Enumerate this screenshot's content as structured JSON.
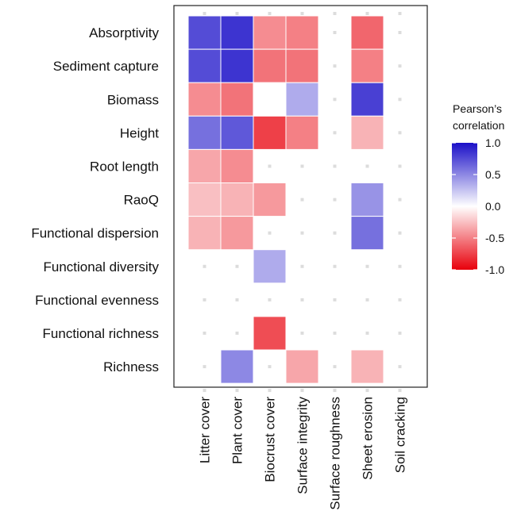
{
  "chart_data": {
    "type": "heatmap",
    "rows": [
      "Absorptivity",
      "Sediment capture",
      "Biomass",
      "Height",
      "Root length",
      "RaoQ",
      "Functional dispersion",
      "Functional diversity",
      "Functional evenness",
      "Functional richness",
      "Richness"
    ],
    "columns": [
      "Litter cover",
      "Plant cover",
      "Biocrust cover",
      "Surface integrity",
      "Surface roughness",
      "Sheet erosion",
      "Soil cracking"
    ],
    "values": [
      [
        0.75,
        0.85,
        -0.45,
        -0.5,
        null,
        -0.6,
        null
      ],
      [
        0.75,
        0.85,
        -0.55,
        -0.55,
        null,
        -0.5,
        null
      ],
      [
        -0.45,
        -0.55,
        0.0,
        0.35,
        null,
        0.8,
        null
      ],
      [
        0.6,
        0.7,
        -0.75,
        -0.5,
        null,
        -0.3,
        null
      ],
      [
        -0.35,
        -0.45,
        null,
        null,
        null,
        null,
        null
      ],
      [
        -0.25,
        -0.3,
        -0.4,
        null,
        null,
        0.45,
        null
      ],
      [
        -0.3,
        -0.4,
        null,
        null,
        null,
        0.6,
        null
      ],
      [
        null,
        null,
        0.35,
        null,
        null,
        null,
        null
      ],
      [
        null,
        null,
        null,
        null,
        null,
        null,
        null
      ],
      [
        null,
        null,
        -0.7,
        null,
        null,
        null,
        null
      ],
      [
        null,
        0.5,
        null,
        -0.35,
        null,
        -0.3,
        null
      ]
    ],
    "colorbar": {
      "title_line1": "Pearson’s",
      "title_line2": "correlation",
      "ticks": [
        "1.0",
        "0.5",
        "0.0",
        "-0.5",
        "-1.0"
      ],
      "tick_values": [
        1.0,
        0.5,
        0.0,
        -0.5,
        -1.0
      ],
      "range": [
        -1.0,
        1.0
      ],
      "low_color": "#e8000b",
      "mid_color": "#ffffff",
      "high_color": "#1b10c8"
    },
    "empty_cell_marker_color": "#dcdcdc"
  }
}
